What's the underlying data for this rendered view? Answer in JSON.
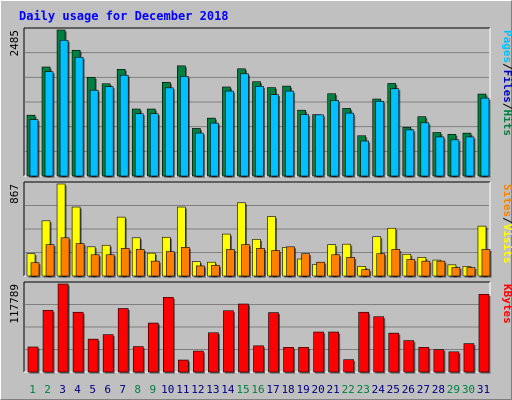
{
  "title": "Daily usage for December 2018",
  "colors": {
    "hits": "#008040",
    "files": "#00c0ff",
    "sites": "#ff8000",
    "visits": "#ffff00",
    "kbytes": "#ff0000",
    "weekend_label": "#008040",
    "weekday_label": "#000080"
  },
  "chart_data": [
    {
      "type": "bar",
      "panel": "hits-files-pages",
      "ymax_label": "2485",
      "ylim": [
        0,
        2485
      ],
      "categories": [
        "1",
        "2",
        "3",
        "4",
        "5",
        "6",
        "7",
        "8",
        "9",
        "10",
        "11",
        "12",
        "13",
        "14",
        "15",
        "16",
        "17",
        "18",
        "19",
        "20",
        "21",
        "22",
        "23",
        "24",
        "25",
        "26",
        "27",
        "28",
        "29",
        "30",
        "31"
      ],
      "weekend_days": [
        1,
        2,
        8,
        9,
        15,
        16,
        22,
        23,
        29,
        30
      ],
      "side_label": [
        "Pages",
        "Files",
        "Hits"
      ],
      "series": [
        {
          "name": "Hits",
          "values": [
            1035,
            1855,
            2485,
            2140,
            1680,
            1570,
            1815,
            1140,
            1140,
            1595,
            1875,
            810,
            985,
            1515,
            1825,
            1605,
            1505,
            1530,
            1120,
            1045,
            1400,
            1150,
            685,
            1310,
            1575,
            830,
            1010,
            740,
            710,
            730,
            1395
          ]
        },
        {
          "name": "Files",
          "values": [
            960,
            1775,
            2310,
            2020,
            1460,
            1520,
            1715,
            1060,
            1060,
            1500,
            1695,
            730,
            900,
            1445,
            1740,
            1525,
            1385,
            1445,
            1045,
            1040,
            1285,
            1070,
            595,
            1270,
            1485,
            785,
            905,
            665,
            615,
            665,
            1325
          ]
        },
        {
          "name": "Pages",
          "values": [
            0,
            0,
            0,
            0,
            0,
            0,
            0,
            0,
            0,
            0,
            0,
            0,
            0,
            0,
            0,
            0,
            0,
            0,
            0,
            0,
            0,
            0,
            0,
            0,
            0,
            0,
            0,
            0,
            0,
            0,
            0
          ]
        }
      ]
    },
    {
      "type": "bar",
      "panel": "sites-visits",
      "ymax_label": "867",
      "ylim": [
        0,
        867
      ],
      "categories": [
        "1",
        "2",
        "3",
        "4",
        "5",
        "6",
        "7",
        "8",
        "9",
        "10",
        "11",
        "12",
        "13",
        "14",
        "15",
        "16",
        "17",
        "18",
        "19",
        "20",
        "21",
        "22",
        "23",
        "24",
        "25",
        "26",
        "27",
        "28",
        "29",
        "30",
        "31"
      ],
      "side_label": [
        "Sites",
        "Visits"
      ],
      "series": [
        {
          "name": "Visits",
          "values": [
            210,
            520,
            867,
            650,
            275,
            290,
            555,
            360,
            215,
            365,
            650,
            135,
            130,
            395,
            690,
            345,
            560,
            270,
            160,
            110,
            295,
            300,
            90,
            370,
            450,
            205,
            175,
            150,
            105,
            90,
            470
          ]
        },
        {
          "name": "Sites",
          "values": [
            125,
            295,
            360,
            305,
            200,
            200,
            260,
            250,
            140,
            230,
            270,
            95,
            100,
            250,
            295,
            260,
            240,
            275,
            210,
            130,
            200,
            175,
            60,
            210,
            250,
            155,
            140,
            140,
            80,
            80,
            250
          ]
        }
      ]
    },
    {
      "type": "bar",
      "panel": "kbytes",
      "ymax_label": "117789",
      "ylim": [
        0,
        117789
      ],
      "categories": [
        "1",
        "2",
        "3",
        "4",
        "5",
        "6",
        "7",
        "8",
        "9",
        "10",
        "11",
        "12",
        "13",
        "14",
        "15",
        "16",
        "17",
        "18",
        "19",
        "20",
        "21",
        "22",
        "23",
        "24",
        "25",
        "26",
        "27",
        "28",
        "29",
        "30",
        "31"
      ],
      "side_label": [
        "KBytes"
      ],
      "series": [
        {
          "name": "KBytes",
          "values": [
            33500,
            82500,
            117789,
            80000,
            44000,
            50000,
            85000,
            34000,
            65500,
            100000,
            16000,
            28000,
            52500,
            82000,
            91000,
            35000,
            79500,
            33000,
            33000,
            53500,
            53500,
            16500,
            80000,
            74000,
            52000,
            42000,
            33000,
            30000,
            27000,
            38000,
            104000
          ]
        }
      ]
    }
  ]
}
